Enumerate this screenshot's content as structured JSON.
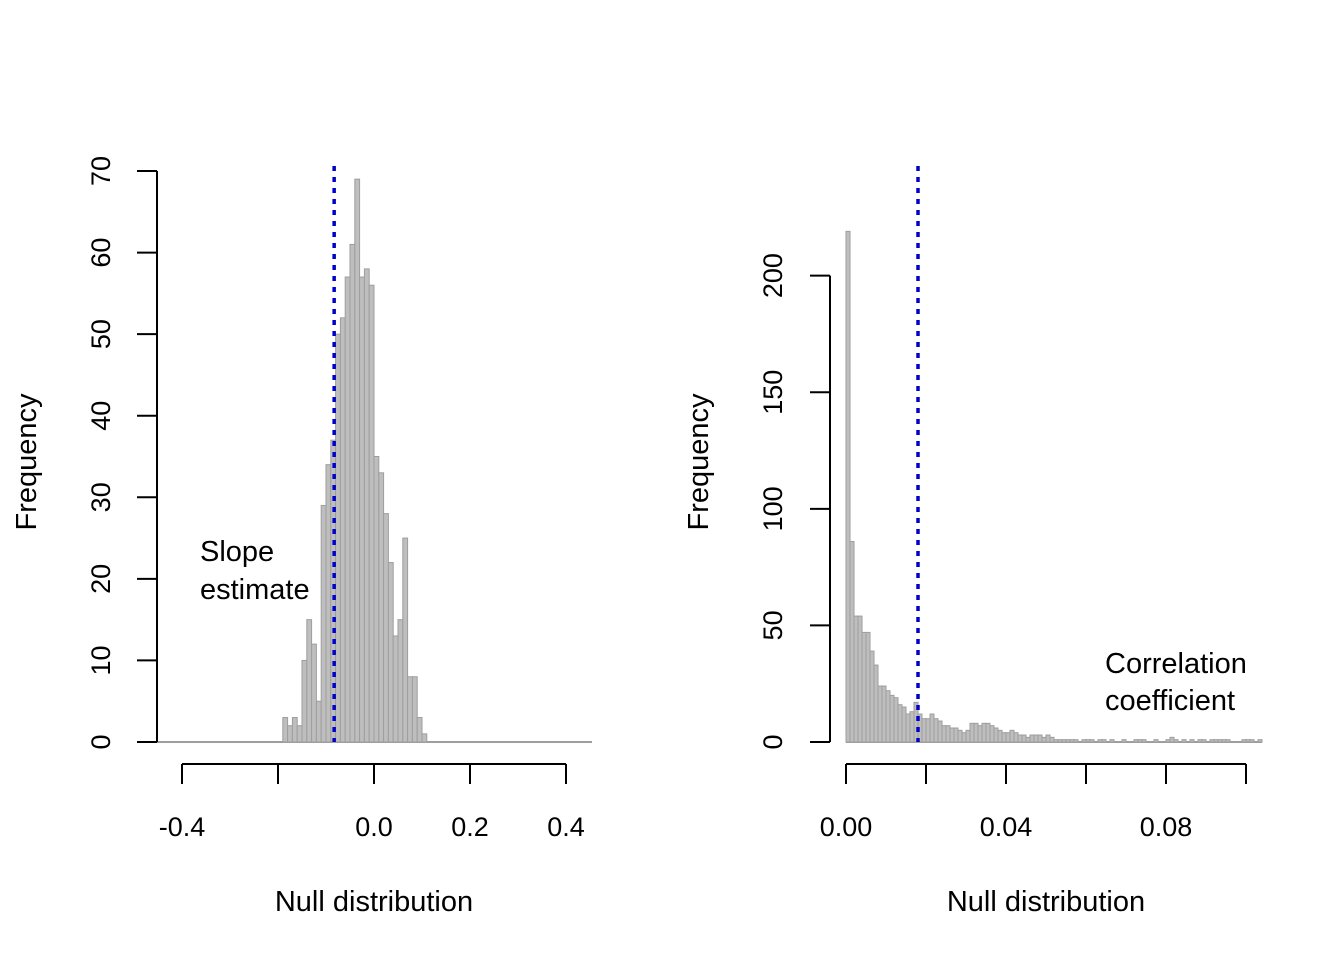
{
  "chart_data": [
    {
      "type": "bar",
      "chart_kind": "histogram",
      "xlabel": "Null distribution",
      "ylabel": "Frequency",
      "xlim": [
        -0.5,
        0.5
      ],
      "ylim": [
        0,
        70
      ],
      "x_ticks": [
        -0.4,
        -0.2,
        0.0,
        0.2,
        0.4
      ],
      "x_tick_labels": [
        "-0.4",
        "",
        "0.0",
        "0.2",
        "0.4"
      ],
      "y_ticks": [
        0,
        10,
        20,
        30,
        40,
        50,
        60,
        70
      ],
      "y_tick_labels": [
        "0",
        "10",
        "20",
        "30",
        "40",
        "50",
        "60",
        "70"
      ],
      "bin_start": -0.54,
      "bin_width": 0.01,
      "counts": [
        0,
        0,
        0,
        0,
        0,
        0,
        0,
        0,
        0,
        0,
        0,
        0,
        0,
        0,
        0,
        0,
        0,
        0,
        0,
        0,
        0,
        0,
        0,
        0,
        0,
        0,
        0,
        0,
        0,
        0,
        0,
        0,
        0,
        0,
        0,
        3,
        2,
        3,
        2,
        10,
        15,
        12,
        5,
        29,
        34,
        37,
        50,
        52,
        57,
        61,
        69,
        57,
        58,
        56,
        35,
        33,
        28,
        22,
        13,
        15,
        25,
        8,
        8,
        3,
        1,
        0,
        0,
        0,
        0,
        0,
        0,
        0,
        0,
        0,
        0,
        0,
        0,
        0,
        0,
        0,
        0,
        0,
        0,
        0,
        0,
        0,
        0,
        0,
        0,
        0,
        0,
        0,
        0,
        0,
        0,
        0,
        0,
        0,
        0,
        0,
        0,
        0,
        0,
        0,
        0,
        0,
        0,
        0
      ],
      "reference_line": {
        "x": -0.083,
        "color": "#0000cc",
        "style": "dotted"
      },
      "annotation": [
        "Slope",
        "estimate"
      ],
      "bar_fill": "#bebebe",
      "bar_stroke": "#9e9e9e",
      "grid": false,
      "legend": "none"
    },
    {
      "type": "bar",
      "chart_kind": "histogram",
      "xlabel": "Null distribution",
      "ylabel": "Frequency",
      "xlim": [
        0,
        0.104
      ],
      "ylim": [
        0,
        220
      ],
      "x_ticks": [
        0.0,
        0.02,
        0.04,
        0.06,
        0.08,
        0.1
      ],
      "x_tick_labels": [
        "0.00",
        "",
        "0.04",
        "",
        "0.08",
        ""
      ],
      "y_ticks": [
        0,
        50,
        100,
        150,
        200
      ],
      "y_tick_labels": [
        "0",
        "50",
        "100",
        "150",
        "200"
      ],
      "bin_start": 0.0,
      "bin_width": 0.001,
      "counts": [
        219,
        86,
        54,
        54,
        47,
        47,
        39,
        33,
        24,
        24,
        22,
        20,
        19,
        16,
        15,
        12,
        13,
        17,
        12,
        10,
        10,
        12,
        10,
        9,
        7,
        7,
        6,
        6,
        5,
        4,
        5,
        8,
        8,
        7,
        8,
        8,
        7,
        6,
        5,
        4,
        4,
        5,
        4,
        3,
        3,
        2,
        3,
        3,
        3,
        2,
        3,
        2,
        1,
        1,
        1,
        1,
        1,
        1,
        0,
        1,
        1,
        1,
        0,
        1,
        1,
        0,
        1,
        0,
        0,
        1,
        0,
        0,
        1,
        1,
        1,
        0,
        0,
        1,
        0,
        0,
        1,
        2,
        1,
        0,
        1,
        0,
        1,
        0,
        1,
        1,
        0,
        1,
        1,
        1,
        1,
        1,
        0,
        0,
        0,
        1,
        1,
        1,
        0,
        1
      ],
      "reference_line": {
        "x": 0.018,
        "color": "#0000cc",
        "style": "dotted"
      },
      "annotation": [
        "Correlation",
        "coefficient"
      ],
      "bar_fill": "#bebebe",
      "bar_stroke": "#9e9e9e",
      "grid": false,
      "legend": "none"
    }
  ]
}
